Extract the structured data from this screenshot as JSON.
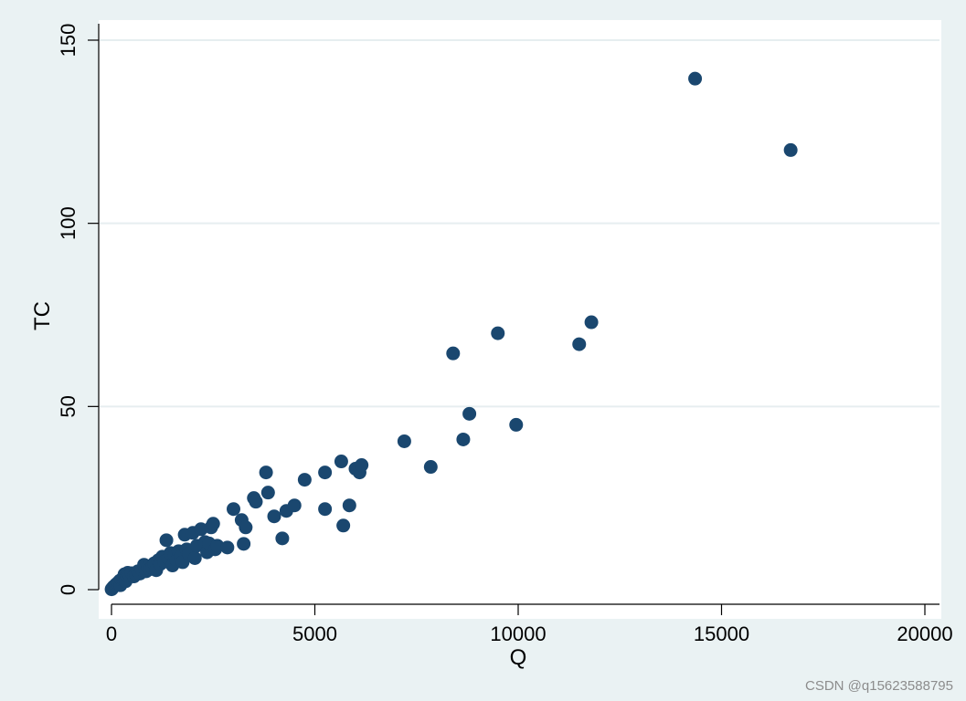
{
  "chart_data": {
    "type": "scatter",
    "xlabel": "Q",
    "ylabel": "TC",
    "xlim": [
      0,
      20000
    ],
    "ylim": [
      0,
      150
    ],
    "xticks": [
      "0",
      "5000",
      "10000",
      "15000",
      "20000"
    ],
    "yticks": [
      "0",
      "50",
      "100",
      "150"
    ],
    "grid": "horizontal",
    "legend": "none",
    "marker_color": "#1a476f",
    "points": [
      [
        2,
        0.1
      ],
      [
        15,
        0.3
      ],
      [
        30,
        0.5
      ],
      [
        50,
        0.8
      ],
      [
        80,
        1.0
      ],
      [
        100,
        1.3
      ],
      [
        120,
        1.5
      ],
      [
        150,
        1.8
      ],
      [
        180,
        2.0
      ],
      [
        200,
        2.4
      ],
      [
        220,
        1.2
      ],
      [
        250,
        2.8
      ],
      [
        280,
        3.0
      ],
      [
        300,
        3.4
      ],
      [
        320,
        4.2
      ],
      [
        350,
        2.3
      ],
      [
        380,
        3.8
      ],
      [
        400,
        4.6
      ],
      [
        450,
        4.0
      ],
      [
        500,
        4.5
      ],
      [
        550,
        3.6
      ],
      [
        600,
        4.2
      ],
      [
        650,
        5.0
      ],
      [
        700,
        4.4
      ],
      [
        750,
        5.4
      ],
      [
        800,
        6.8
      ],
      [
        850,
        5.0
      ],
      [
        900,
        6.2
      ],
      [
        950,
        5.6
      ],
      [
        1000,
        6.0
      ],
      [
        1050,
        7.2
      ],
      [
        1100,
        5.3
      ],
      [
        1150,
        8.0
      ],
      [
        1200,
        7.0
      ],
      [
        1250,
        9.0
      ],
      [
        1300,
        7.6
      ],
      [
        1350,
        13.5
      ],
      [
        1400,
        8.5
      ],
      [
        1450,
        10.0
      ],
      [
        1500,
        6.6
      ],
      [
        1550,
        9.5
      ],
      [
        1600,
        8.0
      ],
      [
        1650,
        10.5
      ],
      [
        1700,
        9.0
      ],
      [
        1750,
        7.5
      ],
      [
        1800,
        15.0
      ],
      [
        1850,
        11.0
      ],
      [
        1900,
        9.8
      ],
      [
        2000,
        15.5
      ],
      [
        2050,
        8.6
      ],
      [
        2100,
        12.0
      ],
      [
        2200,
        16.5
      ],
      [
        2300,
        13.0
      ],
      [
        2350,
        10.2
      ],
      [
        2400,
        12.6
      ],
      [
        2450,
        17.0
      ],
      [
        2500,
        18.0
      ],
      [
        2550,
        11.0
      ],
      [
        2600,
        12.0
      ],
      [
        2850,
        11.5
      ],
      [
        3000,
        22.0
      ],
      [
        3200,
        19.0
      ],
      [
        3250,
        12.5
      ],
      [
        3300,
        17.0
      ],
      [
        3500,
        25.0
      ],
      [
        3550,
        24.0
      ],
      [
        3800,
        32.0
      ],
      [
        3850,
        26.5
      ],
      [
        4000,
        20.0
      ],
      [
        4200,
        14.0
      ],
      [
        4300,
        21.5
      ],
      [
        4500,
        23.0
      ],
      [
        4750,
        30.0
      ],
      [
        5250,
        32.0
      ],
      [
        5250,
        22.0
      ],
      [
        5650,
        35.0
      ],
      [
        5700,
        17.5
      ],
      [
        5850,
        23.0
      ],
      [
        6000,
        33.0
      ],
      [
        6100,
        32.0
      ],
      [
        6150,
        34.0
      ],
      [
        7200,
        40.5
      ],
      [
        7850,
        33.5
      ],
      [
        8400,
        64.5
      ],
      [
        8650,
        41.0
      ],
      [
        8800,
        48.0
      ],
      [
        9500,
        70.0
      ],
      [
        9950,
        45.0
      ],
      [
        11500,
        67.0
      ],
      [
        11800,
        73.0
      ],
      [
        14350,
        139.5
      ],
      [
        16700,
        120.0
      ]
    ]
  },
  "watermark": "CSDN @q15623588795"
}
